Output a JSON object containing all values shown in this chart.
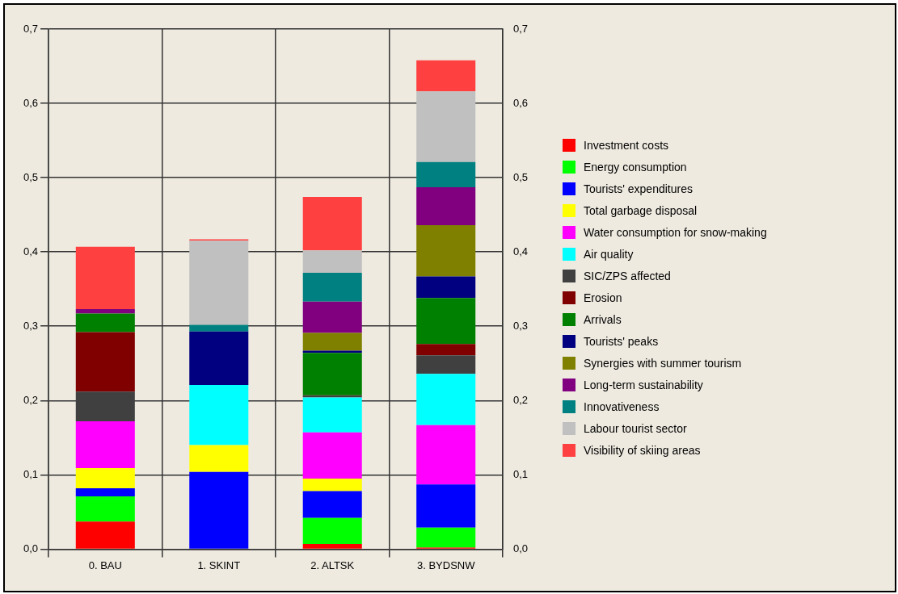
{
  "chart_data": {
    "type": "bar",
    "stacked": true,
    "categories": [
      "0. BAU",
      "1. SKINT",
      "2. ALTSK",
      "3. BYDSNW"
    ],
    "series": [
      {
        "name": "Investment costs",
        "color": "#ff0000",
        "values": [
          0.037,
          0,
          0.007,
          0.002
        ]
      },
      {
        "name": "Energy consumption",
        "color": "#00ff00",
        "values": [
          0.034,
          0,
          0.035,
          0.027
        ]
      },
      {
        "name": "Tourists' expenditures",
        "color": "#0000ff",
        "values": [
          0.011,
          0.104,
          0.036,
          0.058
        ]
      },
      {
        "name": "Total garbage disposal",
        "color": "#ffff00",
        "values": [
          0.027,
          0.036,
          0.017,
          0
        ]
      },
      {
        "name": "Water consumption for snow-making",
        "color": "#ff00ff",
        "values": [
          0.063,
          0,
          0.062,
          0.08
        ]
      },
      {
        "name": "Air quality",
        "color": "#00ffff",
        "values": [
          0,
          0.081,
          0.047,
          0.069
        ]
      },
      {
        "name": "SIC/ZPS affected",
        "color": "#404040",
        "values": [
          0.04,
          0,
          0.003,
          0.025
        ]
      },
      {
        "name": "Erosion",
        "color": "#800000",
        "values": [
          0.08,
          0,
          0,
          0.015
        ]
      },
      {
        "name": "Arrivals",
        "color": "#008000",
        "values": [
          0.025,
          0,
          0.057,
          0.062
        ]
      },
      {
        "name": "Tourists' peaks",
        "color": "#000080",
        "values": [
          0,
          0.072,
          0.003,
          0.029
        ]
      },
      {
        "name": "Synergies with summer tourism",
        "color": "#808000",
        "values": [
          0,
          0,
          0.024,
          0.069
        ]
      },
      {
        "name": "Long-term sustainability",
        "color": "#800080",
        "values": [
          0.006,
          0,
          0.042,
          0.051
        ]
      },
      {
        "name": "Innovativeness",
        "color": "#008080",
        "values": [
          0,
          0.009,
          0.039,
          0.034
        ]
      },
      {
        "name": "Labour tourist sector",
        "color": "#c0c0c0",
        "values": [
          0,
          0.113,
          0.03,
          0.095
        ]
      },
      {
        "name": "Visibility of skiing areas",
        "color": "#ff4040",
        "values": [
          0.084,
          0.002,
          0.072,
          0.042
        ]
      }
    ],
    "ylim": [
      0,
      0.7
    ],
    "yticks": [
      {
        "value": 0,
        "label": "0,0"
      },
      {
        "value": 0.1,
        "label": "0,1"
      },
      {
        "value": 0.2,
        "label": "0,2"
      },
      {
        "value": 0.3,
        "label": "0,3"
      },
      {
        "value": 0.4,
        "label": "0,4"
      },
      {
        "value": 0.5,
        "label": "0,5"
      },
      {
        "value": 0.6,
        "label": "0,6"
      },
      {
        "value": 0.7,
        "label": "0,7"
      }
    ],
    "y2lim": [
      0,
      0.7
    ],
    "y2ticks": [
      {
        "value": 0,
        "label": "0,0"
      },
      {
        "value": 0.1,
        "label": "0,1"
      },
      {
        "value": 0.2,
        "label": "0,2"
      },
      {
        "value": 0.3,
        "label": "0,3"
      },
      {
        "value": 0.4,
        "label": "0,4"
      },
      {
        "value": 0.5,
        "label": "0,5"
      },
      {
        "value": 0.6,
        "label": "0,6"
      },
      {
        "value": 0.7,
        "label": "0,7"
      }
    ],
    "grid": true,
    "legend": "right"
  }
}
